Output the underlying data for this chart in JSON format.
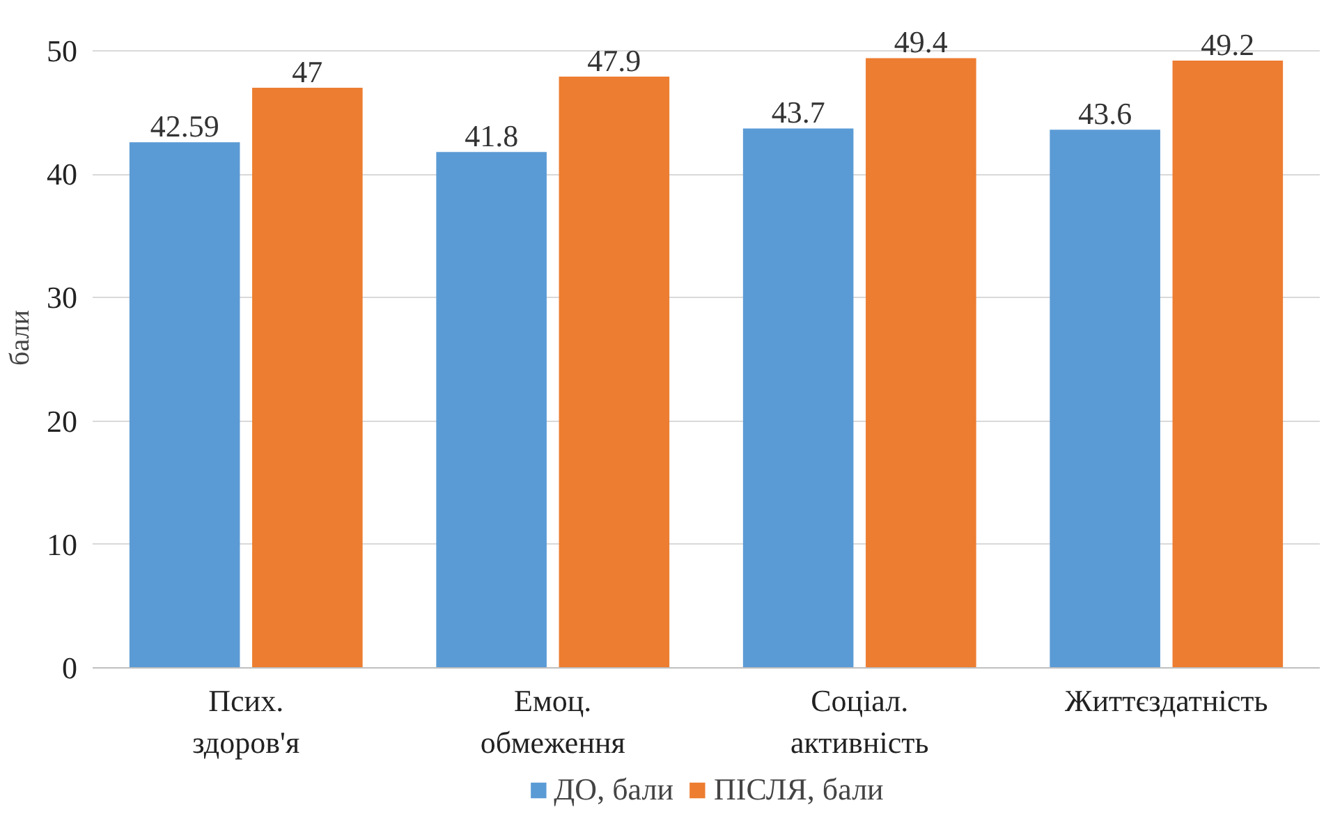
{
  "chart_data": {
    "type": "bar",
    "ylabel": "бали",
    "categories": [
      "Псих.\nздоров'я",
      "Емоц.\nобмеження",
      "Соціал.\nактивність",
      "Життєздатність"
    ],
    "series": [
      {
        "name": "ДО, бали",
        "color": "#5b9bd5",
        "values": [
          42.59,
          41.8,
          43.7,
          43.6
        ]
      },
      {
        "name": "ПІСЛЯ, бали",
        "color": "#ed7d31",
        "values": [
          47,
          47.9,
          49.4,
          49.2
        ]
      }
    ],
    "ylim": [
      0,
      50
    ],
    "yticks": [
      0,
      10,
      20,
      30,
      40,
      50
    ],
    "grid": "y",
    "legend": "bottom",
    "data_labels": true
  }
}
